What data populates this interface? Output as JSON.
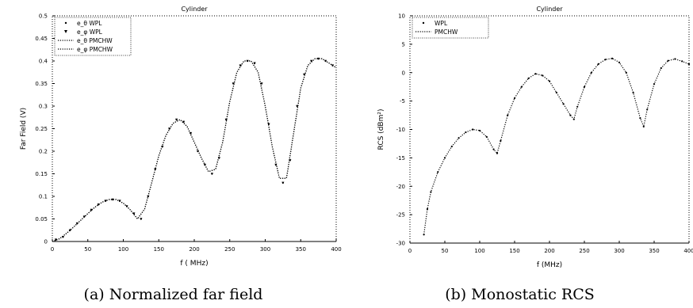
{
  "chart_data": [
    {
      "type": "scatter",
      "title": "Cylinder",
      "xlabel": "f ( MHz)",
      "ylabel": "Far Field (V)",
      "xlim": [
        0,
        400
      ],
      "ylim": [
        0,
        0.5
      ],
      "xticks": [
        "0",
        "50",
        "100",
        "150",
        "200",
        "250",
        "300",
        "350",
        "400"
      ],
      "yticks": [
        "0",
        "0.05",
        "0.1",
        "0.15",
        "0.2",
        "0.25",
        "0.3",
        "0.35",
        "0.4",
        "0.45",
        "0.5"
      ],
      "legend_position": "top-left",
      "grid": false,
      "series": [
        {
          "name": "e_θ WPL",
          "marker": "dot",
          "x": [
            5,
            15,
            25,
            35,
            45,
            55,
            65,
            75,
            85,
            95,
            105,
            115,
            125,
            135,
            145,
            155,
            165,
            175,
            185,
            195,
            205,
            215,
            225,
            235,
            245,
            255,
            265,
            275,
            285,
            295,
            305,
            315,
            325,
            335,
            345,
            355,
            365,
            375,
            385,
            395
          ],
          "y": [
            0.004,
            0.01,
            0.025,
            0.04,
            0.055,
            0.07,
            0.082,
            0.09,
            0.093,
            0.09,
            0.078,
            0.062,
            0.05,
            0.1,
            0.16,
            0.21,
            0.25,
            0.27,
            0.265,
            0.24,
            0.2,
            0.17,
            0.15,
            0.185,
            0.27,
            0.35,
            0.39,
            0.4,
            0.395,
            0.35,
            0.26,
            0.17,
            0.13,
            0.18,
            0.3,
            0.37,
            0.4,
            0.405,
            0.4,
            0.39
          ]
        },
        {
          "name": "e_φ WPL",
          "marker": "triangle",
          "x": [
            5,
            15,
            25,
            35,
            45,
            55,
            65,
            75,
            85,
            95,
            105,
            115,
            125,
            135,
            145,
            155,
            165,
            175,
            185,
            195,
            205,
            215,
            225,
            235,
            245,
            255,
            265,
            275,
            285,
            295,
            305,
            315,
            325,
            335,
            345,
            355,
            365,
            375,
            385,
            395
          ],
          "y": [
            0.004,
            0.01,
            0.025,
            0.04,
            0.055,
            0.07,
            0.082,
            0.09,
            0.093,
            0.09,
            0.078,
            0.062,
            0.05,
            0.1,
            0.16,
            0.21,
            0.25,
            0.27,
            0.265,
            0.24,
            0.2,
            0.17,
            0.15,
            0.185,
            0.27,
            0.35,
            0.39,
            0.4,
            0.395,
            0.35,
            0.26,
            0.17,
            0.13,
            0.18,
            0.3,
            0.37,
            0.4,
            0.405,
            0.4,
            0.39
          ]
        },
        {
          "name": "e_θ PMCHW",
          "marker": "line",
          "x": [
            0,
            10,
            20,
            30,
            40,
            50,
            60,
            70,
            80,
            90,
            100,
            110,
            120,
            130,
            140,
            150,
            160,
            170,
            180,
            190,
            200,
            210,
            220,
            230,
            240,
            250,
            260,
            270,
            280,
            290,
            300,
            310,
            320,
            330,
            340,
            350,
            360,
            370,
            380,
            390,
            400
          ],
          "y": [
            0,
            0.006,
            0.018,
            0.032,
            0.047,
            0.062,
            0.076,
            0.087,
            0.093,
            0.093,
            0.085,
            0.07,
            0.05,
            0.072,
            0.13,
            0.19,
            0.235,
            0.262,
            0.27,
            0.255,
            0.22,
            0.185,
            0.155,
            0.16,
            0.22,
            0.31,
            0.375,
            0.4,
            0.4,
            0.375,
            0.3,
            0.21,
            0.14,
            0.14,
            0.24,
            0.34,
            0.39,
            0.405,
            0.405,
            0.395,
            0.385
          ]
        },
        {
          "name": "e_φ PMCHW",
          "marker": "line",
          "x": [
            0,
            10,
            20,
            30,
            40,
            50,
            60,
            70,
            80,
            90,
            100,
            110,
            120,
            130,
            140,
            150,
            160,
            170,
            180,
            190,
            200,
            210,
            220,
            230,
            240,
            250,
            260,
            270,
            280,
            290,
            300,
            310,
            320,
            330,
            340,
            350,
            360,
            370,
            380,
            390,
            400
          ],
          "y": [
            0,
            0.006,
            0.018,
            0.032,
            0.047,
            0.062,
            0.076,
            0.087,
            0.093,
            0.093,
            0.085,
            0.07,
            0.05,
            0.072,
            0.13,
            0.19,
            0.235,
            0.262,
            0.27,
            0.255,
            0.22,
            0.185,
            0.155,
            0.16,
            0.22,
            0.31,
            0.375,
            0.4,
            0.4,
            0.375,
            0.3,
            0.21,
            0.14,
            0.14,
            0.24,
            0.34,
            0.39,
            0.405,
            0.405,
            0.395,
            0.385
          ]
        }
      ],
      "caption": "(a) Normalized far field"
    },
    {
      "type": "scatter",
      "title": "Cylinder",
      "xlabel": "f (MHz)",
      "ylabel": "RCS (dBm²)",
      "xlim": [
        0,
        400
      ],
      "ylim": [
        -30,
        10
      ],
      "xticks": [
        "0",
        "50",
        "100",
        "150",
        "200",
        "250",
        "300",
        "350",
        "400"
      ],
      "yticks": [
        "-30",
        "-25",
        "-20",
        "-15",
        "-10",
        "-5",
        "0",
        "5",
        "10"
      ],
      "legend_position": "top-left",
      "grid": false,
      "series": [
        {
          "name": "WPL",
          "marker": "dot",
          "x": [
            20,
            25,
            30,
            40,
            50,
            60,
            70,
            80,
            90,
            100,
            110,
            120,
            125,
            130,
            140,
            150,
            160,
            170,
            180,
            190,
            200,
            210,
            220,
            230,
            235,
            240,
            250,
            260,
            270,
            280,
            290,
            300,
            310,
            320,
            330,
            335,
            340,
            350,
            360,
            370,
            380,
            390,
            400
          ],
          "y": [
            -28.5,
            -24,
            -21,
            -17.5,
            -15,
            -13,
            -11.5,
            -10.5,
            -10,
            -10.2,
            -11.3,
            -13.5,
            -14.2,
            -12,
            -7.5,
            -4.5,
            -2.5,
            -1,
            -0.2,
            -0.5,
            -1.5,
            -3.5,
            -5.5,
            -7.5,
            -8.2,
            -6,
            -2.5,
            0,
            1.5,
            2.3,
            2.5,
            1.8,
            0,
            -3.5,
            -8,
            -9.5,
            -6.5,
            -2,
            0.8,
            2.1,
            2.4,
            2,
            1.5
          ]
        },
        {
          "name": "PMCHW",
          "marker": "line",
          "x": [
            20,
            25,
            30,
            40,
            50,
            60,
            70,
            80,
            90,
            100,
            110,
            120,
            125,
            130,
            140,
            150,
            160,
            170,
            180,
            190,
            200,
            210,
            220,
            230,
            235,
            240,
            250,
            260,
            270,
            280,
            290,
            300,
            310,
            320,
            330,
            335,
            340,
            350,
            360,
            370,
            380,
            390,
            400
          ],
          "y": [
            -28.5,
            -24,
            -21,
            -17.5,
            -15,
            -13,
            -11.5,
            -10.5,
            -10,
            -10.2,
            -11.3,
            -13.5,
            -14.2,
            -12,
            -7.5,
            -4.5,
            -2.5,
            -1,
            -0.2,
            -0.5,
            -1.5,
            -3.5,
            -5.5,
            -7.5,
            -8.2,
            -6,
            -2.5,
            0,
            1.5,
            2.3,
            2.5,
            1.8,
            0,
            -3.5,
            -8,
            -9.5,
            -6.5,
            -2,
            0.8,
            2.1,
            2.4,
            2,
            1.5
          ]
        }
      ],
      "caption": "(b) Monostatic RCS"
    }
  ]
}
